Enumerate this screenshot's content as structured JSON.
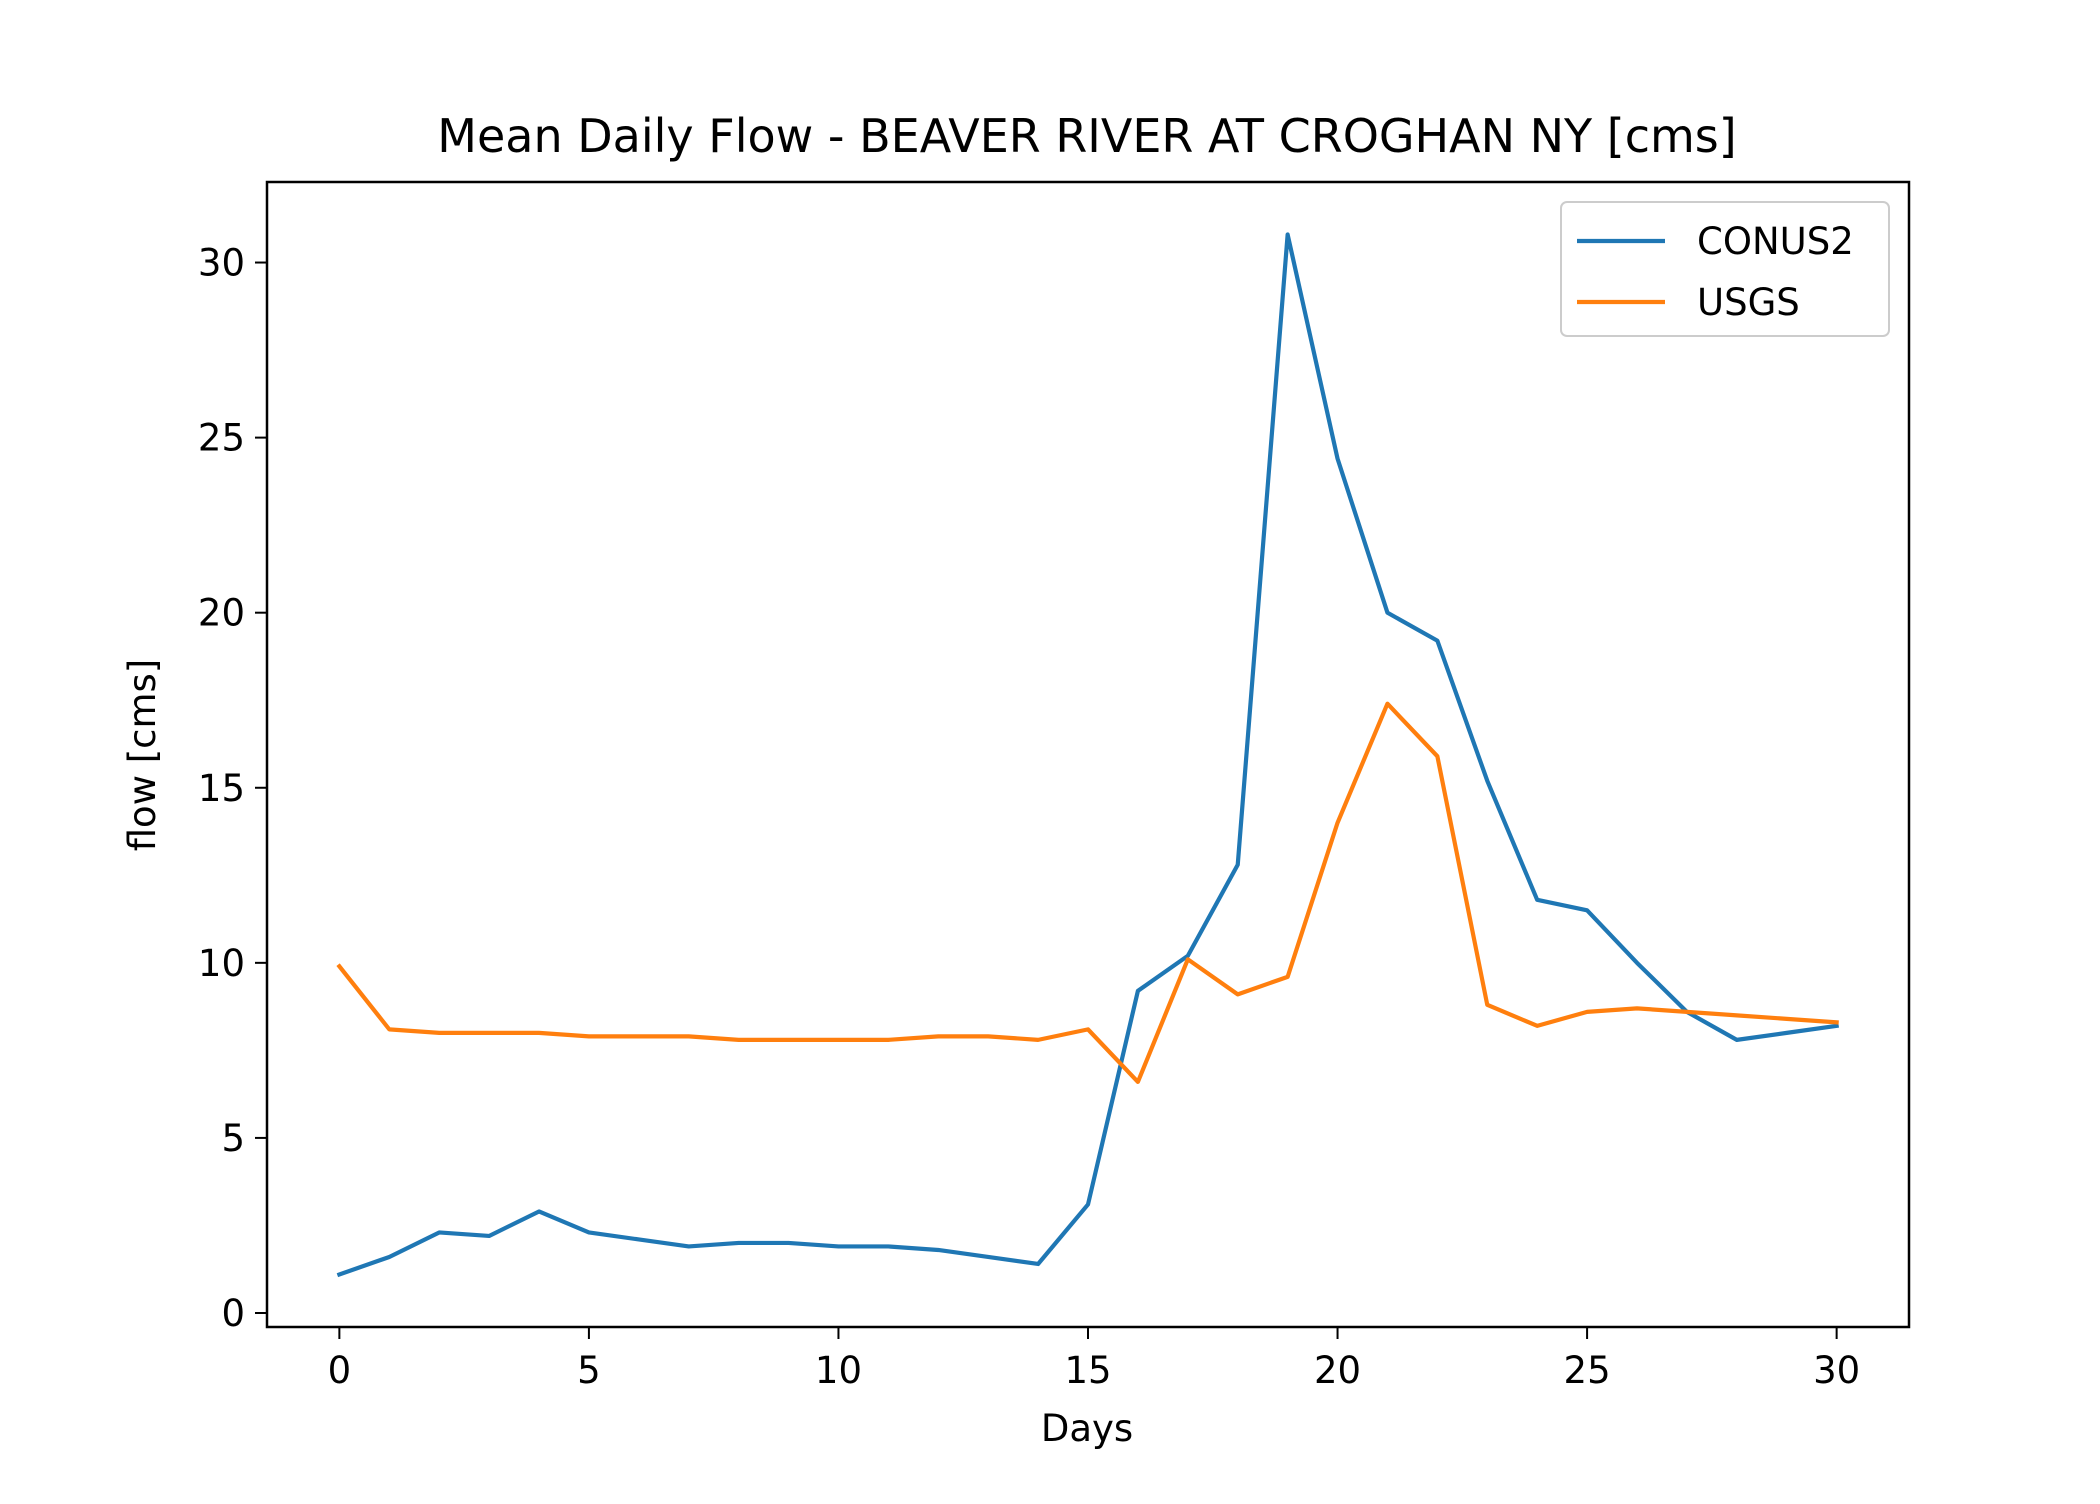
{
  "chart_data": {
    "type": "line",
    "title": "Mean Daily Flow - BEAVER RIVER AT CROGHAN NY [cms]",
    "xlabel": "Days",
    "ylabel": "flow [cms]",
    "xlim": [
      -1.45,
      31.45
    ],
    "ylim": [
      -0.4,
      32.3
    ],
    "xticks": [
      0,
      5,
      10,
      15,
      20,
      25,
      30
    ],
    "yticks": [
      0,
      5,
      10,
      15,
      20,
      25,
      30
    ],
    "grid": false,
    "legend_position": "top-right",
    "x": [
      0,
      1,
      2,
      3,
      4,
      5,
      6,
      7,
      8,
      9,
      10,
      11,
      12,
      13,
      14,
      15,
      16,
      17,
      18,
      19,
      20,
      21,
      22,
      23,
      24,
      25,
      26,
      27,
      28,
      29,
      30
    ],
    "series": [
      {
        "name": "CONUS2",
        "color": "#1f77b4",
        "values": [
          1.1,
          1.6,
          2.3,
          2.2,
          2.9,
          2.3,
          2.1,
          1.9,
          2.0,
          2.0,
          1.9,
          1.9,
          1.8,
          1.6,
          1.4,
          3.1,
          9.2,
          10.2,
          12.8,
          30.8,
          24.4,
          20.0,
          19.2,
          15.2,
          11.8,
          11.5,
          10.0,
          8.6,
          7.8,
          8.0,
          8.2
        ]
      },
      {
        "name": "USGS",
        "color": "#ff7f0e",
        "values": [
          9.9,
          8.1,
          8.0,
          8.0,
          8.0,
          7.9,
          7.9,
          7.9,
          7.8,
          7.8,
          7.8,
          7.8,
          7.9,
          7.9,
          7.8,
          8.1,
          6.6,
          10.1,
          9.1,
          9.6,
          14.0,
          17.4,
          15.9,
          8.8,
          8.2,
          8.6,
          8.7,
          8.6,
          8.5,
          8.4,
          8.3
        ]
      }
    ]
  }
}
